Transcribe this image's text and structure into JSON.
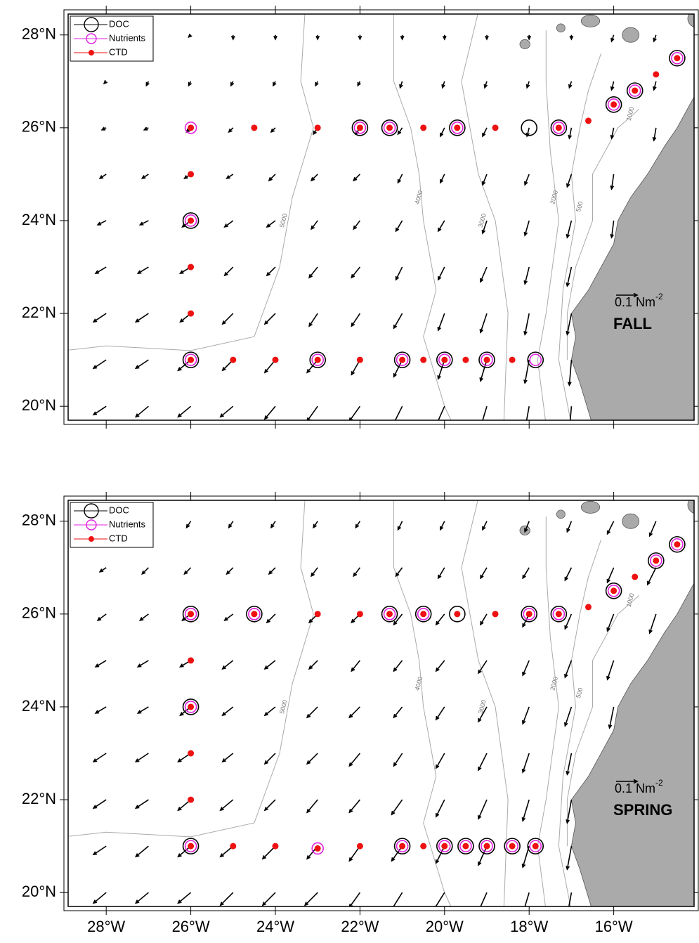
{
  "chart_data": [
    {
      "type": "vector-map",
      "panel_label": "FALL",
      "xlim": [
        -28.9,
        -14.1
      ],
      "ylim": [
        19.7,
        28.45
      ],
      "xticks": [
        -28,
        -26,
        -24,
        -22,
        -20,
        -18,
        -16
      ],
      "yticks": [
        {
          "value": 20,
          "label": "20°N"
        },
        {
          "value": 22,
          "label": "22°N"
        },
        {
          "value": 24,
          "label": "24°N"
        },
        {
          "value": 26,
          "label": "26°N"
        },
        {
          "value": 28,
          "label": "28°N"
        }
      ],
      "series": [
        {
          "name": "DOC",
          "color": "#000000",
          "lon": [
            -22,
            -21.3,
            -19.7,
            -18,
            -17.3,
            -16,
            -15.5,
            -14.5,
            -26,
            -26,
            -23,
            -21,
            -20,
            -19,
            -17.85
          ],
          "lat": [
            26,
            26,
            26,
            26,
            26,
            26.5,
            26.8,
            27.5,
            24,
            21,
            21,
            21,
            21,
            21,
            21
          ]
        },
        {
          "name": "Nutrients",
          "color": "#e020e0",
          "lon": [
            -26,
            -22,
            -21.3,
            -19.7,
            -17.3,
            -16,
            -15.5,
            -14.5,
            -26,
            -26,
            -23,
            -21,
            -20,
            -19,
            -17.85
          ],
          "lat": [
            26,
            26,
            26,
            26,
            26,
            26.5,
            26.8,
            27.5,
            24,
            21,
            21,
            21,
            21,
            21,
            21
          ]
        },
        {
          "name": "CTD",
          "color": "#ee1111",
          "lon": [
            -26,
            -24.5,
            -23,
            -22,
            -21.3,
            -20.5,
            -19.7,
            -18.8,
            -17.3,
            -16.6,
            -16,
            -15.5,
            -15,
            -14.5,
            -26,
            -26,
            -26,
            -26,
            -26,
            -25,
            -24,
            -23,
            -22,
            -21,
            -20.5,
            -20,
            -19.5,
            -19,
            -18.4
          ],
          "lat": [
            26,
            26,
            26,
            26,
            26,
            26,
            26,
            26,
            26,
            26.15,
            26.5,
            26.8,
            27.15,
            27.5,
            25,
            24,
            23,
            22,
            21,
            21,
            21,
            21,
            21,
            21,
            21,
            21,
            21,
            21,
            21
          ]
        }
      ],
      "vectors": {
        "lon": [
          -28,
          -27,
          -26,
          -25,
          -24,
          -23,
          -22,
          -21,
          -20,
          -19,
          -18,
          -17,
          -16,
          -15
        ],
        "lat": [
          28,
          27,
          26,
          25,
          24,
          23,
          22,
          21,
          20
        ],
        "u": [
          [
            -0.01,
            -0.01,
            -0.01,
            0,
            0,
            0,
            0,
            0,
            0,
            0,
            0,
            0,
            -0.01,
            -0.01
          ],
          [
            -0.01,
            -0.01,
            -0.01,
            -0.01,
            -0.01,
            -0.01,
            -0.01,
            -0.01,
            -0.01,
            -0.01,
            -0.01,
            -0.01,
            -0.01,
            -0.01
          ],
          [
            -0.02,
            -0.02,
            -0.02,
            -0.02,
            -0.02,
            -0.02,
            -0.02,
            -0.02,
            -0.02,
            -0.02,
            -0.01,
            -0.01,
            -0.01,
            -0.01
          ],
          [
            -0.03,
            -0.03,
            -0.03,
            -0.03,
            -0.03,
            -0.03,
            -0.03,
            -0.02,
            -0.02,
            -0.02,
            -0.02,
            -0.02,
            -0.01,
            null
          ],
          [
            -0.04,
            -0.04,
            -0.04,
            -0.04,
            -0.04,
            -0.03,
            -0.03,
            -0.03,
            -0.03,
            -0.02,
            -0.02,
            -0.02,
            -0.01,
            null
          ],
          [
            -0.05,
            -0.05,
            -0.05,
            -0.04,
            -0.04,
            -0.04,
            -0.04,
            -0.03,
            -0.03,
            -0.03,
            -0.02,
            -0.02,
            null,
            null
          ],
          [
            -0.06,
            -0.06,
            -0.05,
            -0.05,
            -0.05,
            -0.04,
            -0.04,
            -0.04,
            -0.03,
            -0.03,
            -0.02,
            -0.02,
            null,
            null
          ],
          [
            -0.06,
            -0.06,
            -0.06,
            -0.05,
            -0.05,
            -0.05,
            -0.04,
            -0.04,
            -0.03,
            -0.03,
            -0.02,
            -0.01,
            null,
            null
          ],
          [
            -0.06,
            -0.06,
            -0.06,
            -0.06,
            -0.05,
            -0.05,
            -0.05,
            -0.04,
            -0.04,
            -0.03,
            -0.02,
            -0.01,
            null,
            null
          ]
        ],
        "v": [
          [
            -0.01,
            -0.01,
            -0.01,
            -0.02,
            -0.02,
            -0.02,
            -0.02,
            -0.02,
            -0.02,
            -0.02,
            -0.02,
            -0.02,
            -0.03,
            -0.03
          ],
          [
            -0.01,
            -0.02,
            -0.02,
            -0.02,
            -0.02,
            -0.02,
            -0.02,
            -0.03,
            -0.03,
            -0.03,
            -0.03,
            -0.03,
            -0.04,
            -0.04
          ],
          [
            -0.01,
            -0.01,
            -0.02,
            -0.02,
            -0.02,
            -0.03,
            -0.03,
            -0.03,
            -0.04,
            -0.04,
            -0.04,
            -0.05,
            -0.05,
            -0.06
          ],
          [
            -0.02,
            -0.02,
            -0.02,
            -0.02,
            -0.03,
            -0.03,
            -0.03,
            -0.04,
            -0.04,
            -0.05,
            -0.05,
            -0.06,
            -0.07,
            null
          ],
          [
            -0.02,
            -0.02,
            -0.03,
            -0.03,
            -0.03,
            -0.04,
            -0.04,
            -0.05,
            -0.05,
            -0.06,
            -0.07,
            -0.08,
            -0.08,
            null
          ],
          [
            -0.03,
            -0.03,
            -0.03,
            -0.04,
            -0.04,
            -0.05,
            -0.05,
            -0.06,
            -0.06,
            -0.07,
            -0.08,
            -0.09,
            null,
            null
          ],
          [
            -0.04,
            -0.04,
            -0.04,
            -0.05,
            -0.05,
            -0.06,
            -0.06,
            -0.07,
            -0.08,
            -0.09,
            -0.1,
            -0.1,
            null,
            null
          ],
          [
            -0.04,
            -0.04,
            -0.05,
            -0.05,
            -0.06,
            -0.06,
            -0.07,
            -0.08,
            -0.09,
            -0.1,
            -0.11,
            -0.12,
            null,
            null
          ],
          [
            -0.04,
            -0.05,
            -0.05,
            -0.05,
            -0.06,
            -0.07,
            -0.07,
            -0.08,
            -0.09,
            -0.1,
            -0.11,
            -0.12,
            null,
            null
          ]
        ]
      },
      "reference": {
        "value": 0.1,
        "unit": "Nm",
        "exponent": "-2"
      },
      "contour_labels": [
        "5000",
        "4000",
        "3000",
        "2000",
        "1000",
        "500"
      ]
    },
    {
      "type": "vector-map",
      "panel_label": "SPRING",
      "xlim": [
        -28.9,
        -14.1
      ],
      "ylim": [
        19.7,
        28.45
      ],
      "xticks": [
        {
          "value": -28,
          "label": "28°W"
        },
        {
          "value": -26,
          "label": "26°W"
        },
        {
          "value": -24,
          "label": "24°W"
        },
        {
          "value": -22,
          "label": "22°W"
        },
        {
          "value": -20,
          "label": "20°W"
        },
        {
          "value": -18,
          "label": "18°W"
        },
        {
          "value": -16,
          "label": "16°W"
        }
      ],
      "yticks": [
        {
          "value": 20,
          "label": "20°N"
        },
        {
          "value": 22,
          "label": "22°N"
        },
        {
          "value": 24,
          "label": "24°N"
        },
        {
          "value": 26,
          "label": "26°N"
        },
        {
          "value": 28,
          "label": "28°N"
        }
      ],
      "series": [
        {
          "name": "DOC",
          "color": "#000000",
          "lon": [
            -26,
            -24.5,
            -21.3,
            -20.5,
            -19.7,
            -18,
            -17.3,
            -16,
            -15,
            -14.5,
            -26,
            -26,
            -21,
            -20,
            -19.5,
            -19,
            -18.4,
            -17.85
          ],
          "lat": [
            26,
            26,
            26,
            26,
            26,
            26,
            26,
            26.5,
            27.15,
            27.5,
            24,
            21,
            21,
            21,
            21,
            21,
            21,
            21
          ]
        },
        {
          "name": "Nutrients",
          "color": "#e020e0",
          "lon": [
            -26,
            -24.5,
            -21.3,
            -20.5,
            -18,
            -17.3,
            -16,
            -15,
            -14.5,
            -26,
            -26,
            -23,
            -21,
            -20,
            -19.5,
            -19,
            -18.4,
            -17.85
          ],
          "lat": [
            26,
            26,
            26,
            26,
            26,
            26,
            26.5,
            27.15,
            27.5,
            24,
            21,
            20.95,
            21,
            21,
            21,
            21,
            21,
            21
          ]
        },
        {
          "name": "CTD",
          "color": "#ee1111",
          "lon": [
            -26,
            -24.5,
            -23,
            -22,
            -21.3,
            -20.5,
            -19.7,
            -18.8,
            -18,
            -17.3,
            -16.6,
            -16,
            -15.5,
            -15,
            -14.5,
            -26,
            -26,
            -26,
            -26,
            -26,
            -25,
            -24,
            -23,
            -22,
            -21,
            -20.5,
            -20,
            -19.5,
            -19,
            -18.4,
            -17.85
          ],
          "lat": [
            26,
            26,
            26,
            26,
            26,
            26,
            26,
            26,
            26,
            26,
            26.15,
            26.5,
            26.8,
            27.15,
            27.5,
            25,
            24,
            23,
            22,
            21,
            21,
            21,
            20.95,
            21,
            21,
            21,
            21,
            21,
            21,
            21,
            21
          ]
        }
      ],
      "vectors": {
        "lon": [
          -28,
          -27,
          -26,
          -25,
          -24,
          -23,
          -22,
          -21,
          -20,
          -19,
          -18,
          -17,
          -16,
          -15
        ],
        "lat": [
          28,
          27,
          26,
          25,
          24,
          23,
          22,
          21,
          20
        ],
        "u": [
          [
            -0.02,
            -0.02,
            -0.02,
            -0.02,
            -0.02,
            -0.02,
            -0.02,
            -0.02,
            -0.02,
            -0.02,
            -0.02,
            -0.02,
            -0.03,
            -0.03
          ],
          [
            -0.03,
            -0.03,
            -0.03,
            -0.03,
            -0.03,
            -0.03,
            -0.03,
            -0.03,
            -0.03,
            -0.03,
            -0.03,
            -0.03,
            -0.03,
            -0.04
          ],
          [
            -0.04,
            -0.04,
            -0.04,
            -0.04,
            -0.04,
            -0.04,
            -0.04,
            -0.04,
            -0.04,
            -0.03,
            -0.03,
            -0.03,
            -0.03,
            -0.03
          ],
          [
            -0.05,
            -0.05,
            -0.05,
            -0.05,
            -0.05,
            -0.04,
            -0.04,
            -0.04,
            -0.04,
            -0.04,
            -0.03,
            -0.03,
            -0.03,
            null
          ],
          [
            -0.05,
            -0.05,
            -0.05,
            -0.05,
            -0.05,
            -0.05,
            -0.05,
            -0.04,
            -0.04,
            -0.04,
            -0.03,
            -0.03,
            -0.02,
            null
          ],
          [
            -0.06,
            -0.06,
            -0.06,
            -0.05,
            -0.05,
            -0.05,
            -0.05,
            -0.04,
            -0.04,
            -0.04,
            -0.03,
            -0.02,
            null,
            null
          ],
          [
            -0.06,
            -0.06,
            -0.06,
            -0.06,
            -0.05,
            -0.05,
            -0.05,
            -0.05,
            -0.04,
            -0.04,
            -0.03,
            -0.02,
            null,
            null
          ],
          [
            -0.06,
            -0.06,
            -0.06,
            -0.06,
            -0.06,
            -0.05,
            -0.05,
            -0.05,
            -0.04,
            -0.04,
            -0.03,
            -0.02,
            null,
            null
          ],
          [
            -0.06,
            -0.06,
            -0.06,
            -0.06,
            -0.06,
            -0.06,
            -0.05,
            -0.05,
            -0.05,
            -0.04,
            -0.03,
            -0.02,
            null,
            null
          ]
        ],
        "v": [
          [
            -0.02,
            -0.02,
            -0.03,
            -0.03,
            -0.03,
            -0.03,
            -0.03,
            -0.04,
            -0.04,
            -0.04,
            -0.05,
            -0.05,
            -0.06,
            -0.07
          ],
          [
            -0.02,
            -0.03,
            -0.03,
            -0.03,
            -0.03,
            -0.04,
            -0.04,
            -0.04,
            -0.05,
            -0.05,
            -0.05,
            -0.06,
            -0.07,
            -0.08
          ],
          [
            -0.03,
            -0.03,
            -0.03,
            -0.03,
            -0.04,
            -0.04,
            -0.04,
            -0.05,
            -0.05,
            -0.05,
            -0.06,
            -0.07,
            -0.08,
            -0.09
          ],
          [
            -0.03,
            -0.03,
            -0.03,
            -0.04,
            -0.04,
            -0.04,
            -0.05,
            -0.05,
            -0.05,
            -0.06,
            -0.07,
            -0.08,
            -0.09,
            null
          ],
          [
            -0.03,
            -0.03,
            -0.04,
            -0.04,
            -0.04,
            -0.05,
            -0.05,
            -0.05,
            -0.06,
            -0.07,
            -0.08,
            -0.09,
            -0.1,
            null
          ],
          [
            -0.04,
            -0.04,
            -0.04,
            -0.04,
            -0.05,
            -0.05,
            -0.06,
            -0.06,
            -0.07,
            -0.08,
            -0.09,
            -0.1,
            null,
            null
          ],
          [
            -0.04,
            -0.04,
            -0.05,
            -0.05,
            -0.05,
            -0.06,
            -0.06,
            -0.07,
            -0.08,
            -0.09,
            -0.1,
            -0.11,
            null,
            null
          ],
          [
            -0.04,
            -0.05,
            -0.05,
            -0.05,
            -0.06,
            -0.06,
            -0.07,
            -0.07,
            -0.08,
            -0.09,
            -0.1,
            -0.11,
            null,
            null
          ],
          [
            -0.05,
            -0.05,
            -0.05,
            -0.06,
            -0.06,
            -0.06,
            -0.07,
            -0.08,
            -0.08,
            -0.09,
            -0.1,
            -0.11,
            null,
            null
          ]
        ]
      },
      "reference": {
        "value": 0.1,
        "unit": "Nm",
        "exponent": "-2"
      },
      "contour_labels": [
        "5000",
        "4000",
        "3000",
        "2000",
        "1000",
        "500"
      ]
    }
  ]
}
